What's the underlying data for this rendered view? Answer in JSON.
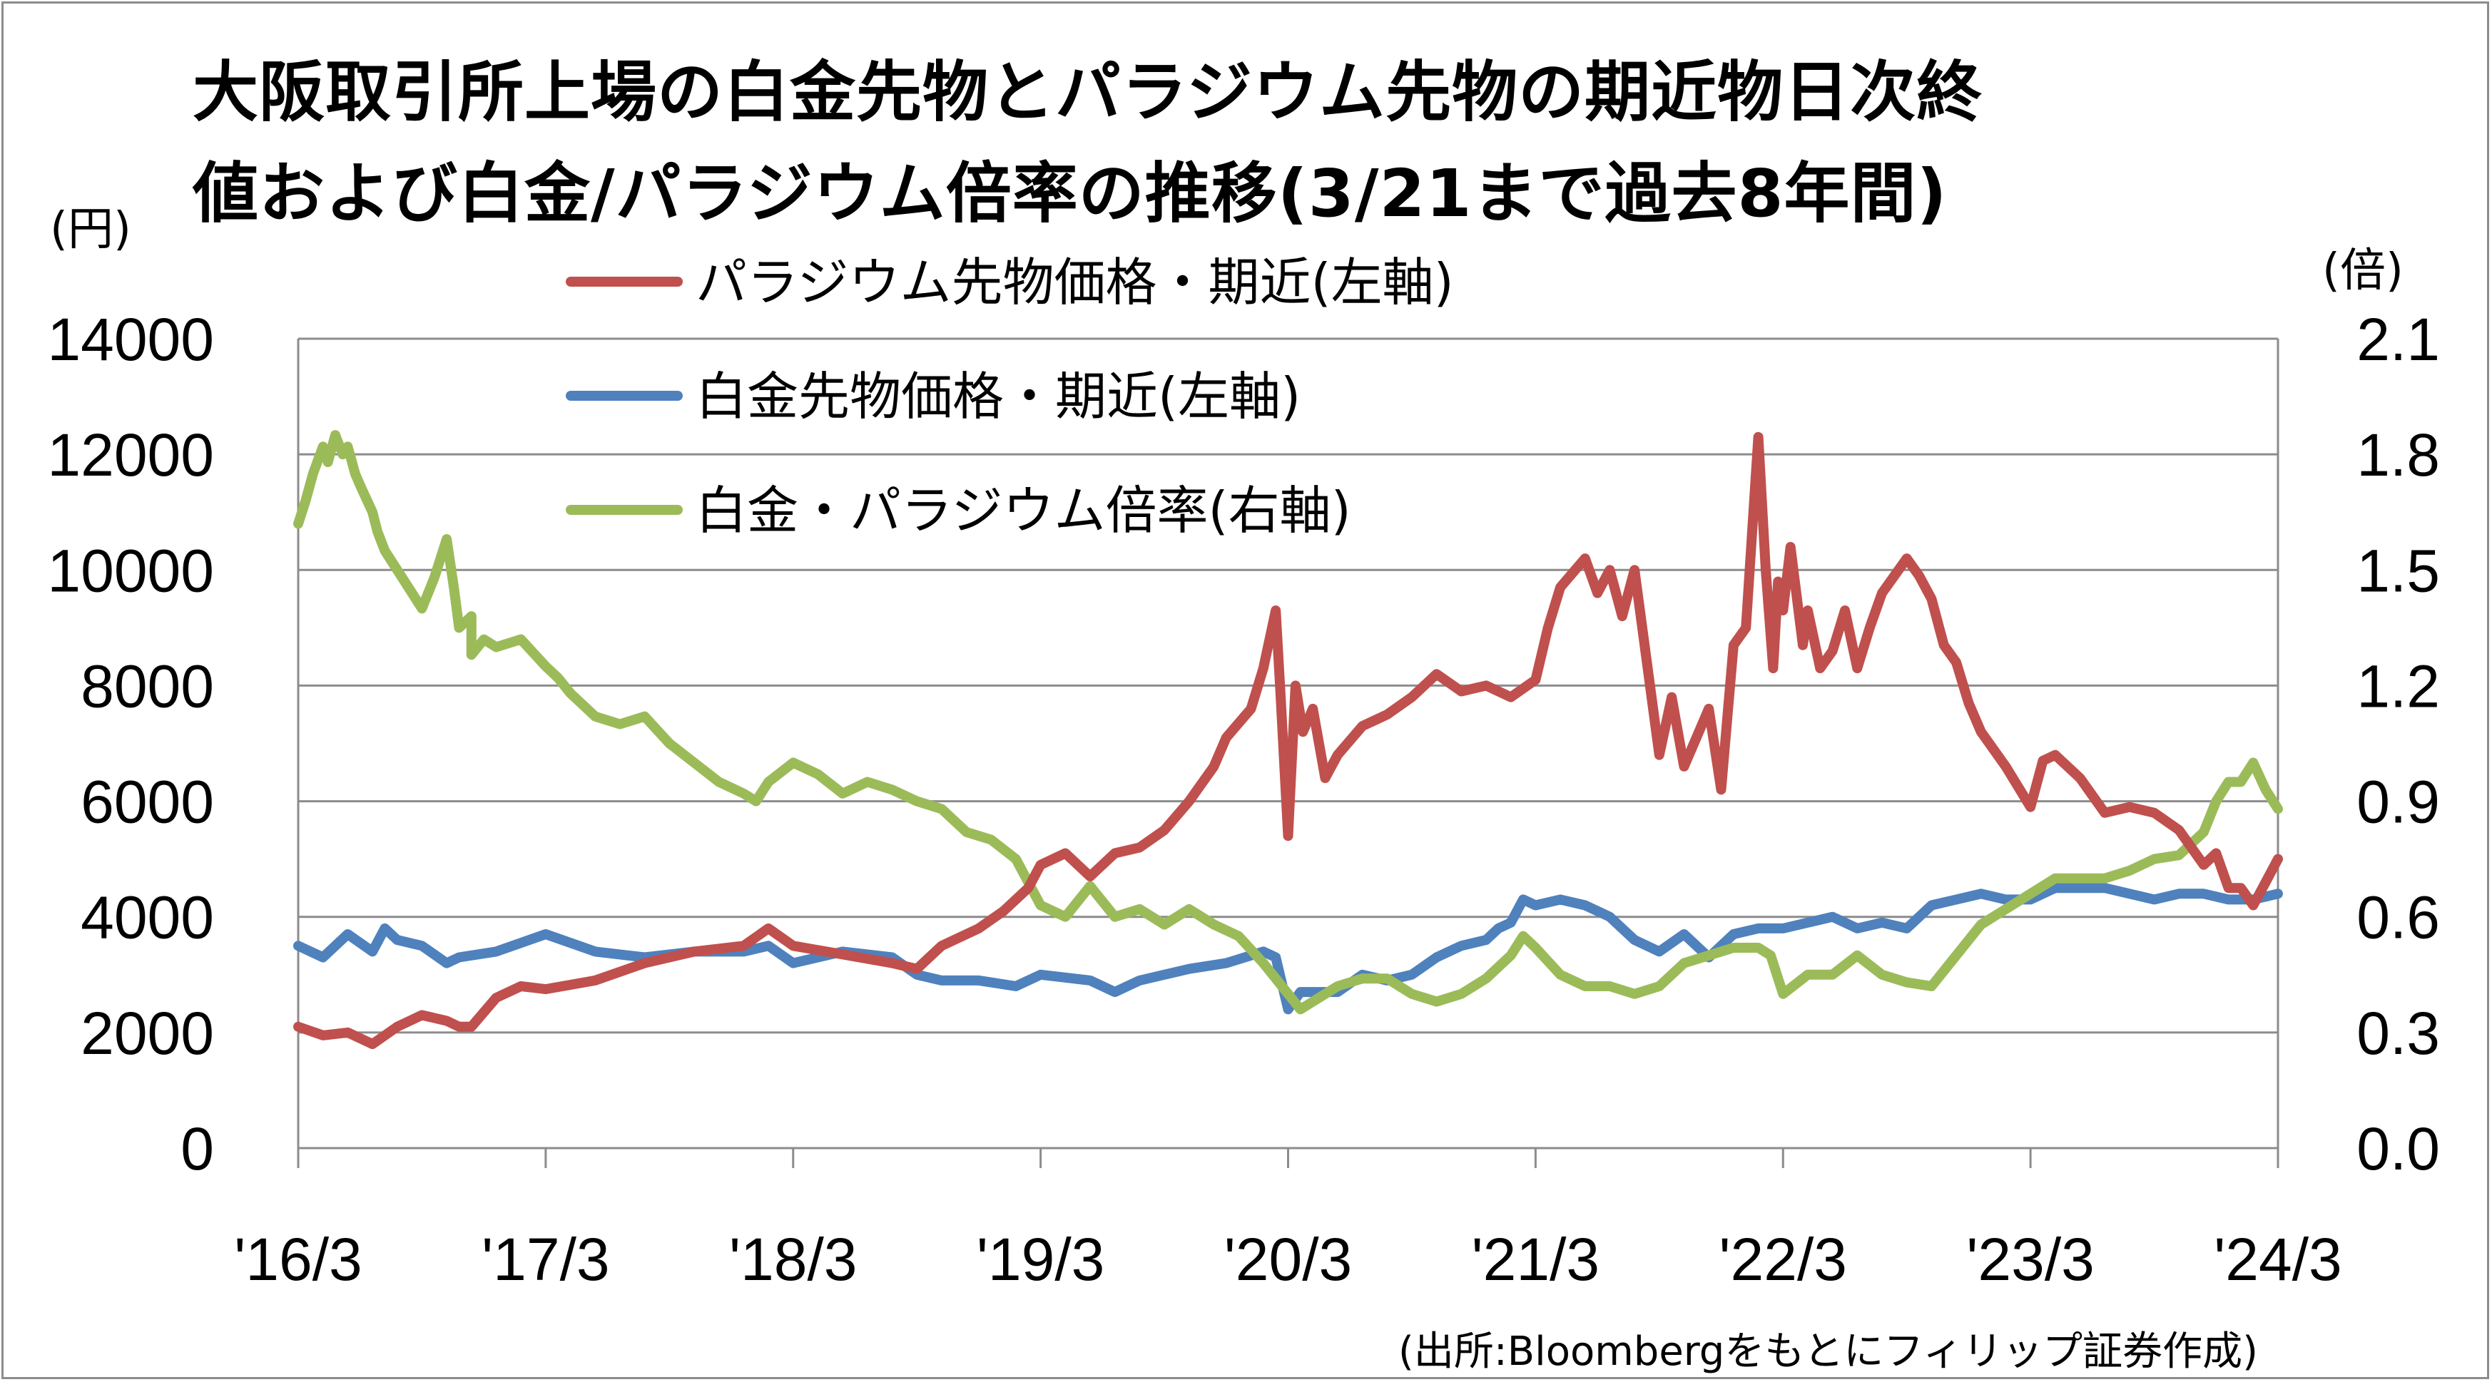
{
  "title_line1": "大阪取引所上場の白金先物とパラジウム先物の期近物日次終",
  "title_line2": "値および白金/パラジウム倍率の推移(3/21まで過去8年間)",
  "unit_left": "(円)",
  "unit_right": "(倍)",
  "source": "(出所:Bloombergをもとにフィリップ証券作成)",
  "chart_data": {
    "type": "line",
    "x_unit": "years since 2016-03",
    "x_range": [
      0,
      8
    ],
    "x_tick_values": [
      0,
      1,
      2,
      3,
      4,
      5,
      6,
      7,
      8
    ],
    "x_tick_labels": [
      "'16/3",
      "'17/3",
      "'18/3",
      "'19/3",
      "'20/3",
      "'21/3",
      "'22/3",
      "'23/3",
      "'24/3"
    ],
    "ylim_left": [
      0,
      14000
    ],
    "y_ticks_left": [
      "0",
      "2000",
      "4000",
      "6000",
      "8000",
      "10000",
      "12000",
      "14000"
    ],
    "y_tick_values_left": [
      0,
      2000,
      4000,
      6000,
      8000,
      10000,
      12000,
      14000
    ],
    "ylim_right": [
      0,
      2.1
    ],
    "y_ticks_right": [
      "0.0",
      "0.3",
      "0.6",
      "0.9",
      "1.2",
      "1.5",
      "1.8",
      "2.1"
    ],
    "y_tick_values_right": [
      0,
      0.3,
      0.6,
      0.9,
      1.2,
      1.5,
      1.8,
      2.1
    ],
    "grid": true,
    "legend_position": "top-center",
    "series": [
      {
        "name": "パラジウム先物価格・期近(左軸)",
        "axis": "left",
        "color": "#c0504d",
        "x": [
          0,
          0.1,
          0.2,
          0.3,
          0.4,
          0.5,
          0.6,
          0.65,
          0.7,
          0.8,
          0.9,
          1.0,
          1.2,
          1.4,
          1.6,
          1.8,
          1.9,
          2.0,
          2.2,
          2.4,
          2.5,
          2.6,
          2.75,
          2.85,
          2.95,
          3.0,
          3.1,
          3.2,
          3.3,
          3.4,
          3.5,
          3.6,
          3.7,
          3.75,
          3.85,
          3.9,
          3.95,
          3.97,
          4.0,
          4.03,
          4.06,
          4.1,
          4.15,
          4.2,
          4.3,
          4.4,
          4.5,
          4.6,
          4.7,
          4.8,
          4.9,
          5.0,
          5.05,
          5.1,
          5.2,
          5.25,
          5.3,
          5.35,
          5.4,
          5.5,
          5.55,
          5.6,
          5.7,
          5.75,
          5.8,
          5.85,
          5.9,
          5.93,
          5.96,
          5.98,
          6.0,
          6.03,
          6.08,
          6.1,
          6.15,
          6.2,
          6.25,
          6.3,
          6.35,
          6.4,
          6.5,
          6.55,
          6.6,
          6.65,
          6.7,
          6.75,
          6.8,
          6.9,
          7.0,
          7.05,
          7.1,
          7.2,
          7.3,
          7.4,
          7.5,
          7.6,
          7.7,
          7.75,
          7.8,
          7.85,
          7.9,
          7.95,
          8.0
        ],
        "values": [
          2100,
          1950,
          2000,
          1800,
          2100,
          2300,
          2200,
          2100,
          2100,
          2600,
          2800,
          2750,
          2900,
          3200,
          3400,
          3500,
          3800,
          3500,
          3350,
          3200,
          3100,
          3500,
          3800,
          4100,
          4500,
          4900,
          5100,
          4700,
          5100,
          5200,
          5500,
          6000,
          6600,
          7100,
          7600,
          8300,
          9300,
          7800,
          5400,
          8000,
          7200,
          7600,
          6400,
          6800,
          7300,
          7500,
          7800,
          8200,
          7900,
          8000,
          7800,
          8100,
          9000,
          9700,
          10200,
          9600,
          10000,
          9200,
          10000,
          6800,
          7800,
          6600,
          7600,
          6200,
          8700,
          9000,
          12300,
          10000,
          8300,
          9800,
          9300,
          10400,
          8700,
          9300,
          8300,
          8600,
          9300,
          8300,
          9000,
          9600,
          10200,
          9900,
          9500,
          8700,
          8400,
          7700,
          7200,
          6600,
          5900,
          6700,
          6800,
          6400,
          5800,
          5900,
          5800,
          5500,
          4900,
          5100,
          4500,
          4500,
          4200,
          4600,
          5000
        ]
      },
      {
        "name": "白金先物価格・期近(左軸)",
        "axis": "left",
        "color": "#4f81bd",
        "x": [
          0,
          0.1,
          0.2,
          0.3,
          0.35,
          0.4,
          0.5,
          0.6,
          0.65,
          0.8,
          1.0,
          1.2,
          1.4,
          1.6,
          1.8,
          1.9,
          2.0,
          2.2,
          2.4,
          2.5,
          2.6,
          2.75,
          2.9,
          3.0,
          3.2,
          3.3,
          3.4,
          3.5,
          3.6,
          3.75,
          3.9,
          3.95,
          4.0,
          4.05,
          4.1,
          4.2,
          4.3,
          4.4,
          4.5,
          4.6,
          4.7,
          4.8,
          4.85,
          4.9,
          4.95,
          5.0,
          5.1,
          5.2,
          5.3,
          5.4,
          5.5,
          5.6,
          5.7,
          5.8,
          5.9,
          6.0,
          6.1,
          6.2,
          6.3,
          6.4,
          6.5,
          6.6,
          6.7,
          6.8,
          6.9,
          7.0,
          7.1,
          7.2,
          7.3,
          7.4,
          7.5,
          7.6,
          7.7,
          7.8,
          7.9,
          8.0
        ],
        "values": [
          3500,
          3300,
          3700,
          3400,
          3800,
          3600,
          3500,
          3200,
          3300,
          3400,
          3700,
          3400,
          3300,
          3400,
          3400,
          3500,
          3200,
          3400,
          3300,
          3000,
          2900,
          2900,
          2800,
          3000,
          2900,
          2700,
          2900,
          3000,
          3100,
          3200,
          3400,
          3300,
          2400,
          2700,
          2700,
          2700,
          3000,
          2900,
          3000,
          3300,
          3500,
          3600,
          3800,
          3900,
          4300,
          4200,
          4300,
          4200,
          4000,
          3600,
          3400,
          3700,
          3300,
          3700,
          3800,
          3800,
          3900,
          4000,
          3800,
          3900,
          3800,
          4200,
          4300,
          4400,
          4300,
          4300,
          4500,
          4500,
          4500,
          4400,
          4300,
          4400,
          4400,
          4300,
          4300,
          4400
        ]
      },
      {
        "name": "白金・パラジウム倍率(右軸)",
        "axis": "right",
        "color": "#9bbb59",
        "x": [
          0,
          0.03,
          0.06,
          0.1,
          0.12,
          0.15,
          0.18,
          0.2,
          0.23,
          0.25,
          0.3,
          0.32,
          0.35,
          0.4,
          0.45,
          0.5,
          0.55,
          0.6,
          0.63,
          0.65,
          0.7,
          0.7,
          0.75,
          0.8,
          0.9,
          1.0,
          1.05,
          1.1,
          1.2,
          1.3,
          1.4,
          1.5,
          1.6,
          1.7,
          1.8,
          1.85,
          1.9,
          2.0,
          2.1,
          2.2,
          2.3,
          2.4,
          2.5,
          2.6,
          2.7,
          2.8,
          2.9,
          3.0,
          3.1,
          3.2,
          3.3,
          3.4,
          3.5,
          3.6,
          3.7,
          3.8,
          3.9,
          4.0,
          4.05,
          4.1,
          4.2,
          4.3,
          4.4,
          4.5,
          4.6,
          4.7,
          4.8,
          4.9,
          4.95,
          5.0,
          5.1,
          5.2,
          5.3,
          5.4,
          5.5,
          5.6,
          5.7,
          5.8,
          5.9,
          5.95,
          6.0,
          6.1,
          6.2,
          6.3,
          6.4,
          6.5,
          6.6,
          6.7,
          6.8,
          6.9,
          7.0,
          7.1,
          7.2,
          7.3,
          7.4,
          7.5,
          7.6,
          7.7,
          7.75,
          7.8,
          7.85,
          7.9,
          7.95,
          8.0
        ],
        "values": [
          1.62,
          1.68,
          1.75,
          1.82,
          1.78,
          1.85,
          1.8,
          1.82,
          1.75,
          1.72,
          1.65,
          1.6,
          1.55,
          1.5,
          1.45,
          1.4,
          1.48,
          1.58,
          1.45,
          1.35,
          1.38,
          1.28,
          1.32,
          1.3,
          1.32,
          1.25,
          1.22,
          1.18,
          1.12,
          1.1,
          1.12,
          1.05,
          1.0,
          0.95,
          0.92,
          0.9,
          0.95,
          1.0,
          0.97,
          0.92,
          0.95,
          0.93,
          0.9,
          0.88,
          0.82,
          0.8,
          0.75,
          0.63,
          0.6,
          0.68,
          0.6,
          0.62,
          0.58,
          0.62,
          0.58,
          0.55,
          0.48,
          0.4,
          0.36,
          0.38,
          0.42,
          0.44,
          0.44,
          0.4,
          0.38,
          0.4,
          0.44,
          0.5,
          0.55,
          0.52,
          0.45,
          0.42,
          0.42,
          0.4,
          0.42,
          0.48,
          0.5,
          0.52,
          0.52,
          0.5,
          0.4,
          0.45,
          0.45,
          0.5,
          0.45,
          0.43,
          0.42,
          0.5,
          0.58,
          0.62,
          0.66,
          0.7,
          0.7,
          0.7,
          0.72,
          0.75,
          0.76,
          0.82,
          0.9,
          0.95,
          0.95,
          1.0,
          0.93,
          0.88
        ]
      }
    ]
  }
}
